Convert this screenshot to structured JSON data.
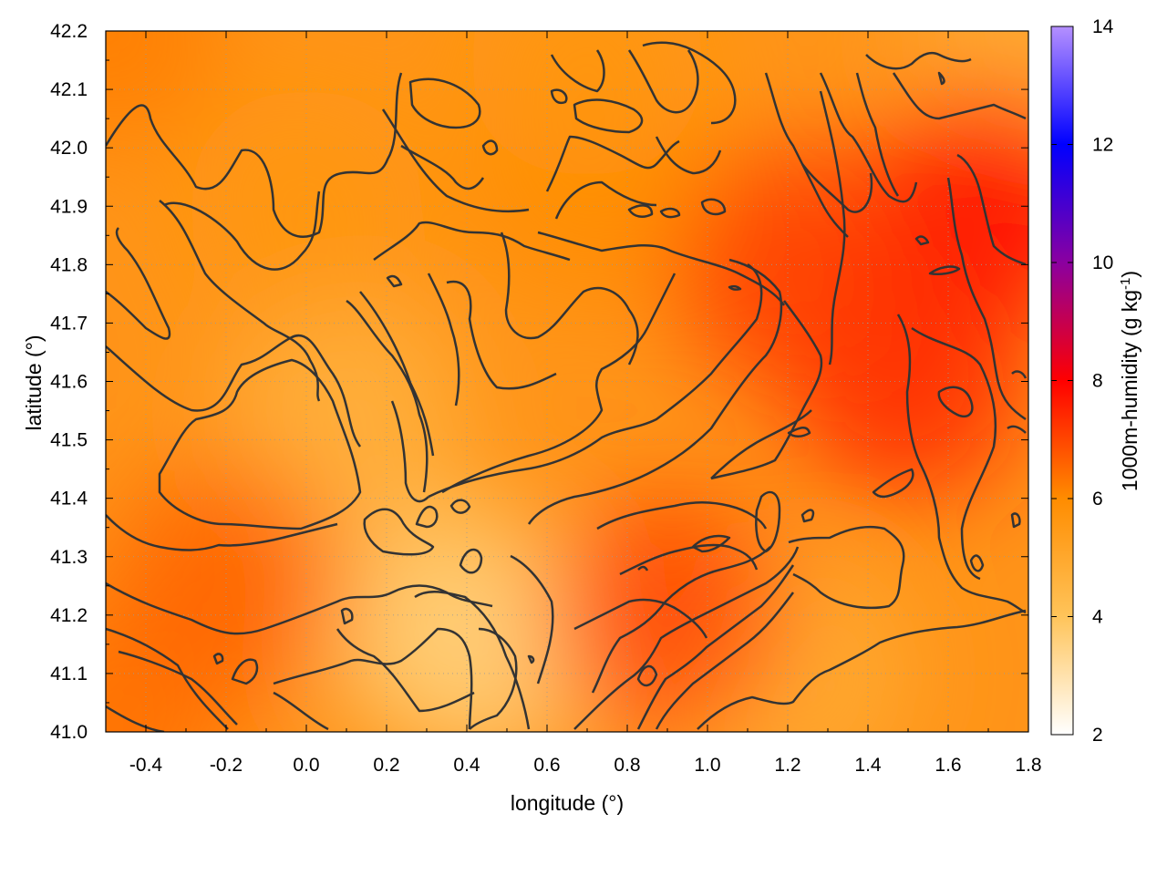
{
  "chart_data": {
    "type": "heatmap",
    "title": "",
    "xlabel": "longitude (°)",
    "ylabel": "latitude (°)",
    "colorbar_label": "1000m-humidity (g kg",
    "colorbar_label_sup": "-1",
    "colorbar_label_end": ")",
    "xlim": [
      -0.5,
      1.8
    ],
    "ylim": [
      41.0,
      42.2
    ],
    "x_ticks": [
      -0.4,
      -0.2,
      0.0,
      0.2,
      0.4,
      0.6,
      0.8,
      1.0,
      1.2,
      1.4,
      1.6,
      1.8
    ],
    "x_tick_labels": [
      "-0.4",
      "-0.2",
      "0.0",
      "0.2",
      "0.4",
      "0.6",
      "0.8",
      "1.0",
      "1.2",
      "1.4",
      "1.6",
      "1.8"
    ],
    "y_ticks": [
      41.0,
      41.1,
      41.2,
      41.3,
      41.4,
      41.5,
      41.6,
      41.7,
      41.8,
      41.9,
      42.0,
      42.1,
      42.2
    ],
    "y_tick_labels": [
      "41.0",
      "41.1",
      "41.2",
      "41.3",
      "41.4",
      "41.5",
      "41.6",
      "41.7",
      "41.8",
      "41.9",
      "42.0",
      "42.1",
      "42.2"
    ],
    "colorbar_range": [
      2,
      14
    ],
    "colorbar_ticks": [
      2,
      4,
      6,
      8,
      10,
      12,
      14
    ],
    "colorbar_tick_labels": [
      "2",
      "4",
      "6",
      "8",
      "10",
      "12",
      "14"
    ],
    "colormap": [
      {
        "v": 2,
        "color": "#ffffff"
      },
      {
        "v": 4,
        "color": "#ffc45a"
      },
      {
        "v": 6,
        "color": "#ff8c00"
      },
      {
        "v": 8,
        "color": "#ff0000"
      },
      {
        "v": 10,
        "color": "#8b00a0"
      },
      {
        "v": 12,
        "color": "#0000ff"
      },
      {
        "v": 14,
        "color": "#b590ff"
      }
    ],
    "grid": true,
    "contour_levels": [
      5,
      6,
      7
    ],
    "contour_color": "#333333",
    "humidity_field_samples": [
      {
        "lon": -0.5,
        "lat": 42.2,
        "value": 6.2
      },
      {
        "lon": -0.5,
        "lat": 41.0,
        "value": 6.4
      },
      {
        "lon": 1.8,
        "lat": 42.2,
        "value": 4.8
      },
      {
        "lon": 1.7,
        "lat": 41.9,
        "value": 8.0
      },
      {
        "lon": 1.5,
        "lat": 41.6,
        "value": 7.5
      },
      {
        "lon": 1.2,
        "lat": 41.8,
        "value": 7.2
      },
      {
        "lon": 0.3,
        "lat": 41.2,
        "value": 4.0
      },
      {
        "lon": 0.45,
        "lat": 41.15,
        "value": 3.6
      },
      {
        "lon": 0.1,
        "lat": 41.55,
        "value": 4.6
      },
      {
        "lon": -0.2,
        "lat": 41.25,
        "value": 6.6
      },
      {
        "lon": 1.2,
        "lat": 41.1,
        "value": 4.8
      },
      {
        "lon": 0.9,
        "lat": 41.2,
        "value": 7.0
      },
      {
        "lon": 0.7,
        "lat": 41.95,
        "value": 6.0
      },
      {
        "lon": 0.7,
        "lat": 42.15,
        "value": 5.6
      },
      {
        "lon": 0.0,
        "lat": 41.9,
        "value": 5.6
      }
    ]
  }
}
